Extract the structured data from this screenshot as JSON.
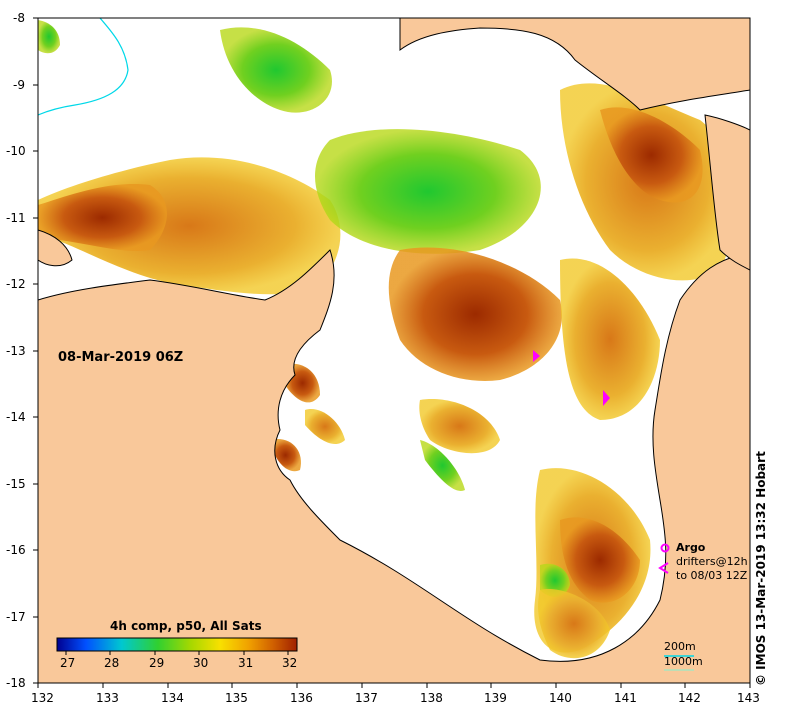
{
  "map": {
    "timestamp": "08-Mar-2019 06Z",
    "x_ticks": [
      "132",
      "133",
      "134",
      "135",
      "136",
      "137",
      "138",
      "139",
      "140",
      "141",
      "142",
      "143"
    ],
    "y_ticks": [
      "-8",
      "-9",
      "-10",
      "-11",
      "-12",
      "-13",
      "-14",
      "-15",
      "-16",
      "-17",
      "-18"
    ],
    "lon_range": [
      132,
      143
    ],
    "lat_range": [
      -18,
      -8
    ],
    "colors": {
      "land": "#f9c89a",
      "ocean": "#ffffff",
      "isobath_200": "#00d8e8",
      "isobath_1000": "#a8e6c0",
      "argo": "#ff00ff"
    }
  },
  "colorbar": {
    "title": "4h comp, p50, All Sats",
    "ticks": [
      "27",
      "28",
      "29",
      "30",
      "31",
      "32"
    ],
    "range": [
      26.8,
      32.2
    ]
  },
  "legend": {
    "argo_label": "Argo",
    "drifters_line1": "drifters@12h",
    "drifters_line2": "to 08/03 12Z",
    "isobath_200": "200m",
    "isobath_1000": "1000m"
  },
  "credit": "© IMOS 13-Mar-2019 13:32 Hobart"
}
